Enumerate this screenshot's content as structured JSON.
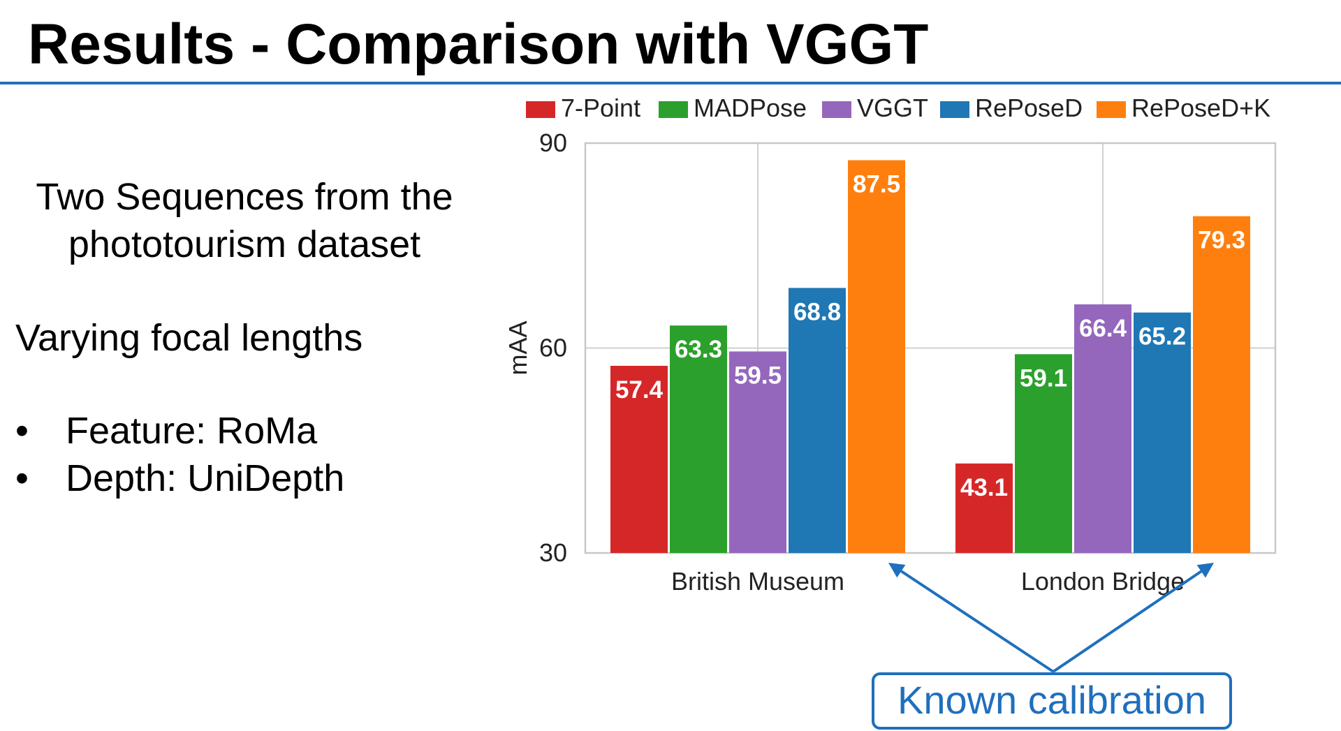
{
  "slide": {
    "title": "Results - Comparison with VGGT",
    "intro_lines": [
      "Two Sequences from the",
      "phototourism dataset"
    ],
    "focal_text": "Varying focal lengths",
    "bullets": [
      {
        "symbol": "•",
        "text": "Feature: RoMa"
      },
      {
        "symbol": "•",
        "text": "Depth: UniDepth"
      }
    ],
    "callout": "Known calibration",
    "colors": {
      "accent": "#1f6fbd",
      "text": "#000000"
    }
  },
  "chart_data": {
    "type": "bar",
    "categories": [
      "British Museum",
      "London Bridge"
    ],
    "series": [
      {
        "name": "7-Point",
        "color": "#d62728",
        "values": [
          57.4,
          43.1
        ]
      },
      {
        "name": "MADPose",
        "color": "#2ca02c",
        "values": [
          63.3,
          59.1
        ]
      },
      {
        "name": "VGGT",
        "color": "#9467bd",
        "values": [
          59.5,
          66.4
        ]
      },
      {
        "name": "RePoseD",
        "color": "#1f77b4",
        "values": [
          68.8,
          65.2
        ]
      },
      {
        "name": "RePoseD+K",
        "color": "#ff7f0e",
        "values": [
          87.5,
          79.3
        ]
      }
    ],
    "title": "",
    "xlabel": "",
    "ylabel": "mAA",
    "ylim": [
      30,
      90
    ],
    "yticks": [
      30,
      60,
      90
    ],
    "grid": true,
    "legend": "top"
  }
}
